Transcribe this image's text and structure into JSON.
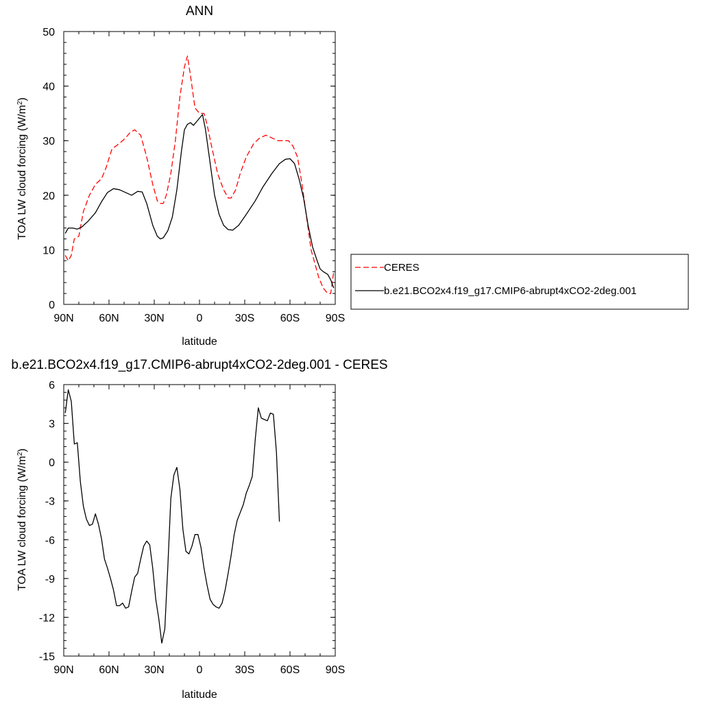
{
  "chart_data": [
    {
      "type": "line",
      "title": "ANN",
      "xlabel": "latitude",
      "ylabel_main": "TOA LW cloud forcing (W/m",
      "ylabel_sup": "2",
      "ylabel_close": ")",
      "xlim": [
        90,
        -90
      ],
      "ylim": [
        0,
        50
      ],
      "x_ticks": [
        90,
        60,
        30,
        0,
        -30,
        -60,
        -90
      ],
      "x_tick_labels": [
        "90N",
        "60N",
        "30N",
        "0",
        "30S",
        "60S",
        "90S"
      ],
      "y_ticks": [
        0,
        10,
        20,
        30,
        40,
        50
      ],
      "y_tick_labels": [
        "0",
        "10",
        "20",
        "30",
        "40",
        "50"
      ],
      "grid": false,
      "legend_position": "right",
      "series": [
        {
          "name": "CERES",
          "color": "#ff0000",
          "dash": true,
          "points": [
            [
              89,
              9
            ],
            [
              87,
              8
            ],
            [
              85,
              9
            ],
            [
              83,
              12
            ],
            [
              80,
              12.5
            ],
            [
              77,
              17
            ],
            [
              73,
              20
            ],
            [
              69,
              22
            ],
            [
              65,
              23
            ],
            [
              62,
              25
            ],
            [
              58,
              28.5
            ],
            [
              53,
              29.5
            ],
            [
              49,
              30.5
            ],
            [
              46,
              31.5
            ],
            [
              43,
              32
            ],
            [
              39,
              31
            ],
            [
              35,
              27
            ],
            [
              31,
              22
            ],
            [
              28,
              19
            ],
            [
              26,
              18.5
            ],
            [
              24,
              18.5
            ],
            [
              22,
              20
            ],
            [
              19,
              24
            ],
            [
              16,
              30
            ],
            [
              13,
              38
            ],
            [
              10,
              43.5
            ],
            [
              8,
              45.5
            ],
            [
              6,
              42
            ],
            [
              3,
              36
            ],
            [
              0,
              35
            ],
            [
              -3,
              35
            ],
            [
              -5,
              33
            ],
            [
              -8,
              29
            ],
            [
              -12,
              24
            ],
            [
              -16,
              21
            ],
            [
              -19,
              19.5
            ],
            [
              -21,
              19.5
            ],
            [
              -24,
              21
            ],
            [
              -27,
              24
            ],
            [
              -31,
              27
            ],
            [
              -36,
              29.5
            ],
            [
              -40,
              30.5
            ],
            [
              -44,
              31
            ],
            [
              -48,
              30.5
            ],
            [
              -52,
              30
            ],
            [
              -56,
              30
            ],
            [
              -59,
              30
            ],
            [
              -62,
              29
            ],
            [
              -65,
              27
            ],
            [
              -68,
              22
            ],
            [
              -71,
              16
            ],
            [
              -74,
              10
            ],
            [
              -76,
              8
            ],
            [
              -79,
              5
            ],
            [
              -82,
              3
            ],
            [
              -85,
              2
            ],
            [
              -87,
              2
            ],
            [
              -89,
              6
            ]
          ]
        },
        {
          "name": "b.e21.BCO2x4.f19_g17.CMIP6-abrupt4xCO2-2deg.001",
          "color": "#000000",
          "dash": false,
          "points": [
            [
              89,
              13
            ],
            [
              87,
              14
            ],
            [
              84,
              14
            ],
            [
              81,
              13.8
            ],
            [
              78,
              14.2
            ],
            [
              74,
              15.2
            ],
            [
              69,
              16.8
            ],
            [
              65,
              18.8
            ],
            [
              61,
              20.5
            ],
            [
              57,
              21.2
            ],
            [
              53,
              21
            ],
            [
              49,
              20.5
            ],
            [
              45,
              20
            ],
            [
              41,
              20.7
            ],
            [
              38,
              20.6
            ],
            [
              35,
              18.5
            ],
            [
              31,
              14.5
            ],
            [
              28,
              12.5
            ],
            [
              26,
              12
            ],
            [
              24,
              12.2
            ],
            [
              21,
              13.5
            ],
            [
              18,
              16
            ],
            [
              15,
              21
            ],
            [
              12,
              28
            ],
            [
              10,
              32
            ],
            [
              8,
              33
            ],
            [
              6,
              33.3
            ],
            [
              4,
              32.8
            ],
            [
              1,
              33.8
            ],
            [
              -2,
              34.8
            ],
            [
              -4,
              32
            ],
            [
              -7,
              26
            ],
            [
              -10,
              20
            ],
            [
              -13,
              16.5
            ],
            [
              -16,
              14.5
            ],
            [
              -19,
              13.7
            ],
            [
              -22,
              13.6
            ],
            [
              -26,
              14.5
            ],
            [
              -31,
              16.5
            ],
            [
              -37,
              19
            ],
            [
              -42,
              21.5
            ],
            [
              -48,
              24
            ],
            [
              -53,
              25.8
            ],
            [
              -57,
              26.6
            ],
            [
              -60,
              26.7
            ],
            [
              -63,
              25.8
            ],
            [
              -66,
              23
            ],
            [
              -69,
              19.5
            ],
            [
              -72,
              14.5
            ],
            [
              -75,
              10.5
            ],
            [
              -78,
              8
            ],
            [
              -80,
              6.5
            ],
            [
              -82,
              6
            ],
            [
              -85,
              5.5
            ],
            [
              -87,
              4.5
            ],
            [
              -89,
              3
            ]
          ]
        }
      ]
    },
    {
      "type": "line",
      "title": "b.e21.BCO2x4.f19_g17.CMIP6-abrupt4xCO2-2deg.001 - CERES",
      "xlabel": "latitude",
      "ylabel_main": "TOA LW cloud forcing (W/m",
      "ylabel_sup": "2",
      "ylabel_close": ")",
      "xlim": [
        90,
        -90
      ],
      "ylim": [
        -15,
        6
      ],
      "x_ticks": [
        90,
        60,
        30,
        0,
        -30,
        -60,
        -90
      ],
      "x_tick_labels": [
        "90N",
        "60N",
        "30N",
        "0",
        "30S",
        "60S",
        "90S"
      ],
      "y_ticks": [
        6,
        3,
        0,
        -3,
        -6,
        -9,
        -12,
        -15
      ],
      "y_tick_labels": [
        "6",
        "3",
        "0",
        "-3",
        "-6",
        "-9",
        "-12",
        "-15"
      ],
      "grid": false,
      "series": [
        {
          "color": "#000000",
          "dash": false,
          "points": [
            [
              89,
              3.8
            ],
            [
              87,
              5.6
            ],
            [
              85,
              4.7
            ],
            [
              83,
              1.4
            ],
            [
              81,
              1.5
            ],
            [
              79,
              -1.5
            ],
            [
              77,
              -3.4
            ],
            [
              75,
              -4.4
            ],
            [
              73,
              -4.9
            ],
            [
              71,
              -4.8
            ],
            [
              69,
              -4
            ],
            [
              67,
              -4.8
            ],
            [
              65,
              -5.9
            ],
            [
              63,
              -7.5
            ],
            [
              61,
              -8.2
            ],
            [
              59,
              -9
            ],
            [
              57,
              -9.9
            ],
            [
              55,
              -11.1
            ],
            [
              53,
              -11.1
            ],
            [
              51,
              -10.9
            ],
            [
              49,
              -11.3
            ],
            [
              47,
              -11.2
            ],
            [
              45,
              -10
            ],
            [
              43,
              -8.9
            ],
            [
              41,
              -8.6
            ],
            [
              39,
              -7.5
            ],
            [
              37,
              -6.5
            ],
            [
              35,
              -6.1
            ],
            [
              33,
              -6.4
            ],
            [
              31,
              -8.2
            ],
            [
              29,
              -10.6
            ],
            [
              27,
              -12.1
            ],
            [
              25,
              -14
            ],
            [
              23,
              -12.9
            ],
            [
              21,
              -8.1
            ],
            [
              19,
              -2.8
            ],
            [
              17,
              -1
            ],
            [
              15,
              -0.4
            ],
            [
              13,
              -2.1
            ],
            [
              11,
              -5.2
            ],
            [
              9,
              -6.9
            ],
            [
              7,
              -7.1
            ],
            [
              5,
              -6.5
            ],
            [
              3,
              -5.6
            ],
            [
              1,
              -5.6
            ],
            [
              -1,
              -6.6
            ],
            [
              -3,
              -8.2
            ],
            [
              -5,
              -9.5
            ],
            [
              -7,
              -10.6
            ],
            [
              -9,
              -11
            ],
            [
              -11,
              -11.2
            ],
            [
              -13,
              -11.3
            ],
            [
              -15,
              -10.9
            ],
            [
              -17,
              -9.9
            ],
            [
              -19,
              -8.6
            ],
            [
              -21,
              -7.2
            ],
            [
              -23,
              -5.6
            ],
            [
              -25,
              -4.5
            ],
            [
              -27,
              -3.9
            ],
            [
              -29,
              -3.3
            ],
            [
              -31,
              -2.4
            ],
            [
              -33,
              -1.8
            ],
            [
              -35,
              -1.1
            ],
            [
              -37,
              1.8
            ],
            [
              -39,
              4.2
            ],
            [
              -41,
              3.4
            ],
            [
              -43,
              3.3
            ],
            [
              -45,
              3.2
            ],
            [
              -47,
              3.8
            ],
            [
              -49,
              3.7
            ],
            [
              -51,
              0.8
            ],
            [
              -53,
              -4.6
            ]
          ]
        }
      ]
    }
  ]
}
